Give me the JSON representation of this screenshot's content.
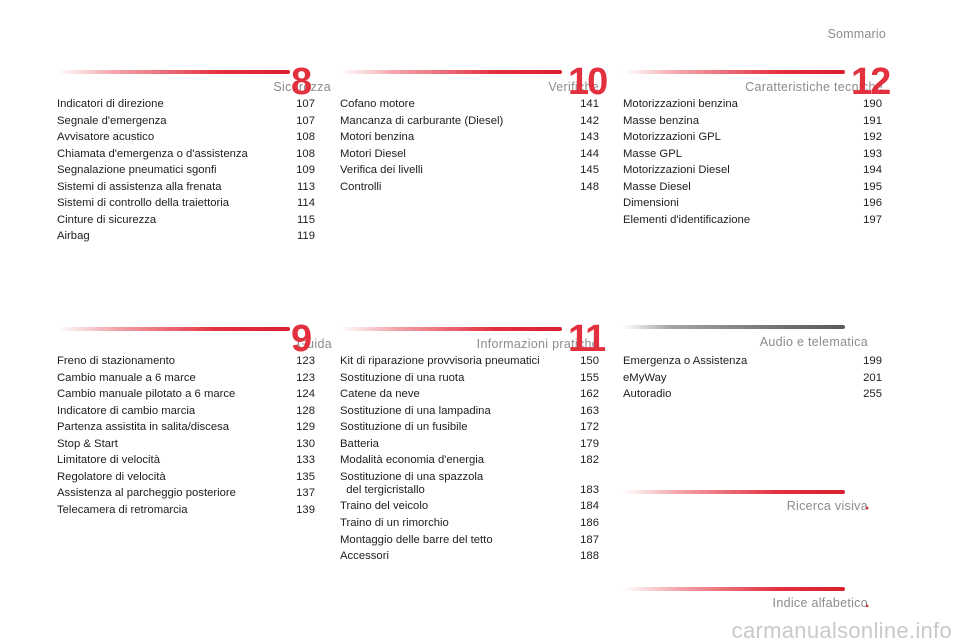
{
  "header": {
    "sommario_label": "Sommario"
  },
  "sections": {
    "sicurezza": {
      "title": "Sicurezza",
      "number": "8",
      "items": [
        {
          "label": "Indicatori di direzione",
          "page": "107"
        },
        {
          "label": "Segnale d'emergenza",
          "page": "107"
        },
        {
          "label": "Avvisatore acustico",
          "page": "108"
        },
        {
          "label": "Chiamata d'emergenza o d'assistenza",
          "page": "108"
        },
        {
          "label": "Segnalazione pneumatici sgonfi",
          "page": "109"
        },
        {
          "label": "Sistemi di assistenza alla frenata",
          "page": "113"
        },
        {
          "label": "Sistemi di controllo della traiettoria",
          "page": "114"
        },
        {
          "label": "Cinture di sicurezza",
          "page": "115"
        },
        {
          "label": "Airbag",
          "page": "119"
        }
      ]
    },
    "verifiche": {
      "title": "Verifiche",
      "number": "10",
      "items": [
        {
          "label": "Cofano motore",
          "page": "141"
        },
        {
          "label": "Mancanza di carburante (Diesel)",
          "page": "142"
        },
        {
          "label": "Motori benzina",
          "page": "143"
        },
        {
          "label": "Motori Diesel",
          "page": "144"
        },
        {
          "label": "Verifica dei livelli",
          "page": "145"
        },
        {
          "label": "Controlli",
          "page": "148"
        }
      ]
    },
    "caratteristiche": {
      "title": "Caratteristiche tecniche",
      "number": "12",
      "items": [
        {
          "label": "Motorizzazioni benzina",
          "page": "190"
        },
        {
          "label": "Masse benzina",
          "page": "191"
        },
        {
          "label": "Motorizzazioni GPL",
          "page": "192"
        },
        {
          "label": "Masse GPL",
          "page": "193"
        },
        {
          "label": "Motorizzazioni Diesel",
          "page": "194"
        },
        {
          "label": "Masse Diesel",
          "page": "195"
        },
        {
          "label": "Dimensioni",
          "page": "196"
        },
        {
          "label": "Elementi d'identificazione",
          "page": "197"
        }
      ]
    },
    "guida": {
      "title": "Guida",
      "number": "9",
      "items": [
        {
          "label": "Freno di stazionamento",
          "page": "123"
        },
        {
          "label": "Cambio manuale a 6 marce",
          "page": "123"
        },
        {
          "label": "Cambio manuale pilotato a 6 marce",
          "page": "124"
        },
        {
          "label": "Indicatore di cambio marcia",
          "page": "128"
        },
        {
          "label": "Partenza assistita in salita/discesa",
          "page": "129"
        },
        {
          "label": "Stop & Start",
          "page": "130"
        },
        {
          "label": "Limitatore di velocità",
          "page": "133"
        },
        {
          "label": "Regolatore di velocità",
          "page": "135"
        },
        {
          "label": "Assistenza al parcheggio posteriore",
          "page": "137"
        },
        {
          "label": "Telecamera di retromarcia",
          "page": "139"
        }
      ]
    },
    "informazioni": {
      "title": "Informazioni pratiche",
      "number": "11",
      "items": [
        {
          "label": "Kit di riparazione provvisoria pneumatici",
          "page": "150"
        },
        {
          "label": "Sostituzione di una ruota",
          "page": "155"
        },
        {
          "label": "Catene da neve",
          "page": "162"
        },
        {
          "label": "Sostituzione di una lampadina",
          "page": "163"
        },
        {
          "label": "Sostituzione di un fusibile",
          "page": "172"
        },
        {
          "label": "Batteria",
          "page": "179"
        },
        {
          "label": "Modalità economia d'energia",
          "page": "182"
        },
        {
          "label": "Sostituzione di una spazzola\n  del tergicristallo",
          "page": "183"
        },
        {
          "label": "Traino del veicolo",
          "page": "184"
        },
        {
          "label": "Traino di un rimorchio",
          "page": "186"
        },
        {
          "label": "Montaggio delle barre del tetto",
          "page": "187"
        },
        {
          "label": "Accessori",
          "page": "188"
        }
      ]
    },
    "audio": {
      "title": "Audio e telematica",
      "items": [
        {
          "label": "Emergenza o Assistenza",
          "page": "199"
        },
        {
          "label": "eMyWay",
          "page": "201"
        },
        {
          "label": "Autoradio",
          "page": "255"
        }
      ]
    },
    "ricerca": {
      "title": "Ricerca visiva",
      "marker": "."
    },
    "indice": {
      "title": "Indice alfabetico",
      "marker": "."
    }
  },
  "footer": {
    "watermark": "carmanualsonline.info"
  },
  "colors": {
    "accent_red": "#e3303f",
    "bar_grey": "#6d6d6d",
    "muted_text": "#8c8c8c"
  }
}
